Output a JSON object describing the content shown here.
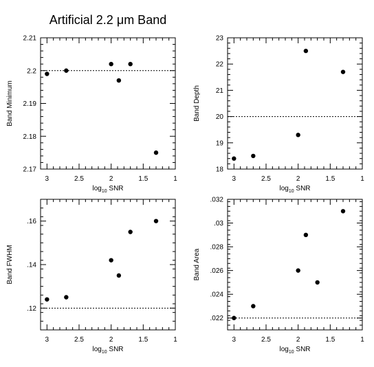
{
  "figure": {
    "title_prefix": "Artificial 2.2 ",
    "title_mu": "μ",
    "title_suffix": "m Band"
  },
  "chart_data": [
    {
      "type": "scatter",
      "id": "band-minimum",
      "xlabel_prefix": "log",
      "xlabel_sub": "10",
      "xlabel_suffix": " SNR",
      "ylabel": "Band Minimum",
      "xlim": [
        3.1,
        1.0
      ],
      "ylim": [
        2.17,
        2.21
      ],
      "xticks": [
        3,
        2.5,
        2,
        1.5,
        1
      ],
      "xtick_labels": [
        "3",
        "2.5",
        "2",
        "1.5",
        "1"
      ],
      "yticks": [
        2.17,
        2.18,
        2.19,
        2.2,
        2.21
      ],
      "ytick_labels": [
        "2.17",
        "2.18",
        "2.19",
        "2.2",
        "2.21"
      ],
      "reference_line": 2.2,
      "x": [
        3.0,
        2.7,
        2.0,
        1.88,
        1.7,
        1.3
      ],
      "y": [
        2.199,
        2.2,
        2.202,
        2.197,
        2.202,
        2.175
      ]
    },
    {
      "type": "scatter",
      "id": "band-depth",
      "xlabel_prefix": "log",
      "xlabel_sub": "10",
      "xlabel_suffix": " SNR",
      "ylabel": "Band Depth",
      "xlim": [
        3.1,
        1.0
      ],
      "ylim": [
        18,
        23
      ],
      "xticks": [
        3,
        2.5,
        2,
        1.5,
        1
      ],
      "xtick_labels": [
        "3",
        "2.5",
        "2",
        "1.5",
        "1"
      ],
      "yticks": [
        18,
        19,
        20,
        21,
        22,
        23
      ],
      "ytick_labels": [
        "18",
        "19",
        "20",
        "21",
        "22",
        "23"
      ],
      "reference_line": 20,
      "x": [
        3.0,
        2.7,
        2.0,
        1.88,
        1.3
      ],
      "y": [
        18.4,
        18.5,
        19.3,
        22.5,
        21.7
      ]
    },
    {
      "type": "scatter",
      "id": "band-fwhm",
      "xlabel_prefix": "log",
      "xlabel_sub": "10",
      "xlabel_suffix": " SNR",
      "ylabel": "Band FWHM",
      "xlim": [
        3.1,
        1.0
      ],
      "ylim": [
        0.11,
        0.17
      ],
      "xticks": [
        3,
        2.5,
        2,
        1.5,
        1
      ],
      "xtick_labels": [
        "3",
        "2.5",
        "2",
        "1.5",
        "1"
      ],
      "yticks": [
        0.12,
        0.14,
        0.16
      ],
      "ytick_labels": [
        ".12",
        ".14",
        ".16"
      ],
      "reference_line": 0.12,
      "x": [
        3.0,
        2.7,
        2.0,
        1.88,
        1.7,
        1.3
      ],
      "y": [
        0.124,
        0.125,
        0.142,
        0.135,
        0.155,
        0.16
      ]
    },
    {
      "type": "scatter",
      "id": "band-area",
      "xlabel_prefix": "log",
      "xlabel_sub": "10",
      "xlabel_suffix": " SNR",
      "ylabel": "Band Area",
      "xlim": [
        3.1,
        1.0
      ],
      "ylim": [
        0.021,
        0.032
      ],
      "xticks": [
        3,
        2.5,
        2,
        1.5,
        1
      ],
      "xtick_labels": [
        "3",
        "2.5",
        "2",
        "1.5",
        "1"
      ],
      "yticks": [
        0.022,
        0.024,
        0.026,
        0.028,
        0.03,
        0.032
      ],
      "ytick_labels": [
        ".022",
        ".024",
        ".026",
        ".028",
        ".03",
        ".032"
      ],
      "reference_line": 0.022,
      "x": [
        3.0,
        2.7,
        2.0,
        1.88,
        1.7,
        1.3
      ],
      "y": [
        0.022,
        0.023,
        0.026,
        0.029,
        0.025,
        0.031
      ]
    }
  ]
}
